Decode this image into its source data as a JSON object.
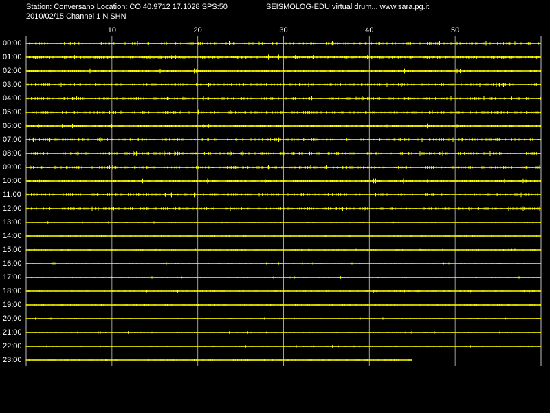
{
  "chart_data": {
    "type": "drum",
    "title": "Station: Conversano Location: CO 40.9712 17.1028 SPS:50",
    "subtitle": "2010/02/15  Channel 1 N SHN",
    "source": "SEISMOLOG-EDU virtual drum... www.sara.pg.it",
    "xlim": [
      0,
      60
    ],
    "xticks": [
      10,
      20,
      30,
      40,
      50
    ],
    "grid": true,
    "color": "#ffff00",
    "categories": [
      "00:00",
      "01:00",
      "02:00",
      "03:00",
      "04:00",
      "05:00",
      "06:00",
      "07:00",
      "08:00",
      "09:00",
      "10:00",
      "11:00",
      "12:00",
      "13:00",
      "14:00",
      "15:00",
      "16:00",
      "17:00",
      "18:00",
      "19:00",
      "20:00",
      "21:00",
      "22:00",
      "23:00"
    ],
    "values": [
      60,
      60,
      60,
      60,
      60,
      60,
      60,
      60,
      60,
      60,
      60,
      60,
      60,
      60,
      60,
      60,
      60,
      60,
      60,
      60,
      60,
      60,
      60,
      45
    ]
  }
}
